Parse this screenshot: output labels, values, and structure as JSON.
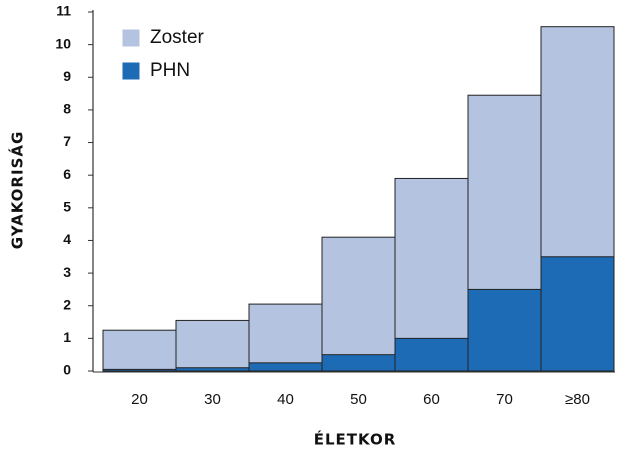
{
  "chart_data": {
    "type": "bar",
    "barmode": "overlay",
    "xlabel": "ÉLETKOR",
    "ylabel": "GYAKORISÁG",
    "categories": [
      "20",
      "30",
      "40",
      "50",
      "60",
      "70",
      "≥80"
    ],
    "series": [
      {
        "name": "Zoster",
        "color": "#b4c4e0",
        "values": [
          1.25,
          1.55,
          2.05,
          4.1,
          5.9,
          8.45,
          10.55
        ]
      },
      {
        "name": "PHN",
        "color": "#1d6bb5",
        "values": [
          0.05,
          0.1,
          0.25,
          0.5,
          1.0,
          2.5,
          3.5
        ]
      }
    ],
    "ylim": [
      0,
      11
    ],
    "yticks": [
      0,
      1,
      2,
      3,
      4,
      5,
      6,
      7,
      8,
      9,
      10,
      11
    ],
    "grid": false,
    "legend": "upper left"
  }
}
